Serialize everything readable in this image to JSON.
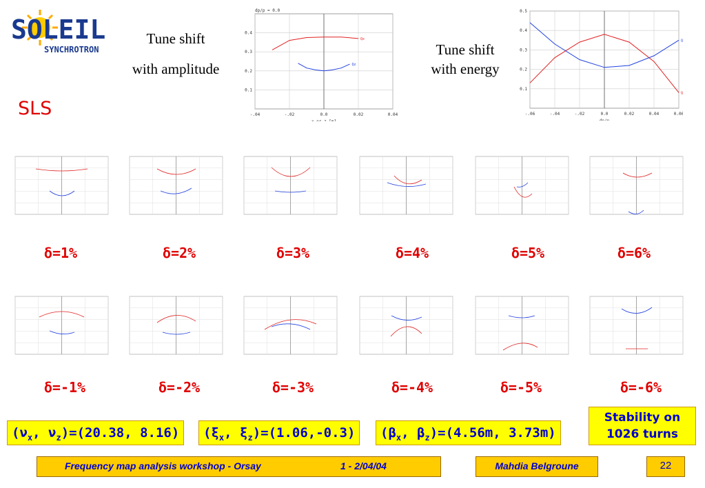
{
  "logo": {
    "word": "SOLEIL",
    "sub": "SYNCHROTRON"
  },
  "left_caption": {
    "line1": "Tune shift",
    "line2": "with amplitude"
  },
  "right_caption": {
    "line1": "Tune shift",
    "line2": "with energy"
  },
  "sls_label": "SLS",
  "delta_pos": [
    "1%",
    "2%",
    "3%",
    "4%",
    "5%",
    "6%"
  ],
  "delta_neg": [
    "-1%",
    "-2%",
    "-3%",
    "-4%",
    "-5%",
    "-6%"
  ],
  "delta_symbol": "δ",
  "params": {
    "tunes": {
      "sym": "ν",
      "x": "x",
      "z": "z",
      "value": ")=(20.38, 8.16)"
    },
    "chroma": {
      "sym": "ξ",
      "x": "x",
      "z": "z",
      "value": ")=(1.06,-0.3)"
    },
    "beta": {
      "sym": "β",
      "x": "x",
      "z": "z",
      "value": ")=(4.56m, 3.73m)"
    }
  },
  "stability": {
    "line1": "Stability on",
    "line2": "1026 turns"
  },
  "footer": {
    "workshop": "Frequency map analysis workshop - Orsay",
    "dates": "1 - 2/04/04",
    "author": "Mahdia Belgroune",
    "page": "22"
  },
  "chart_data": [
    {
      "type": "line",
      "title": "dp/p = 0.0",
      "xlabel": "x or z [m]",
      "xlim": [
        -0.04,
        0.04
      ],
      "ylim": [
        0.0,
        0.5
      ],
      "x_ticks": [
        "-.04",
        "-.02",
        "0.0",
        "0.02",
        "0.04"
      ],
      "y_ticks": [
        "0.1",
        "0.2",
        "0.3",
        "0.4"
      ],
      "series": [
        {
          "name": "Qx",
          "color": "#e02020",
          "x": [
            -0.03,
            -0.02,
            -0.01,
            0.0,
            0.01,
            0.02
          ],
          "y": [
            0.31,
            0.36,
            0.375,
            0.378,
            0.378,
            0.37
          ]
        },
        {
          "name": "Qz",
          "color": "#2040e0",
          "x": [
            -0.015,
            -0.01,
            -0.005,
            0.0,
            0.005,
            0.01,
            0.015
          ],
          "y": [
            0.24,
            0.215,
            0.205,
            0.2,
            0.205,
            0.215,
            0.235
          ]
        }
      ]
    },
    {
      "type": "line",
      "xlabel": "dp/p",
      "xlim": [
        -0.06,
        0.06
      ],
      "ylim": [
        0.0,
        0.5
      ],
      "x_ticks": [
        "-.06",
        "-.04",
        "-.02",
        "0.0",
        "0.02",
        "0.04",
        "0.06"
      ],
      "y_ticks": [
        "0.1",
        "0.2",
        "0.3",
        "0.4",
        "0.5"
      ],
      "series": [
        {
          "name": "Qx",
          "color": "#e02020",
          "x": [
            -0.06,
            -0.04,
            -0.02,
            0.0,
            0.02,
            0.04,
            0.06
          ],
          "y": [
            0.13,
            0.26,
            0.34,
            0.38,
            0.34,
            0.24,
            0.08
          ]
        },
        {
          "name": "Qz",
          "color": "#2040e0",
          "x": [
            -0.06,
            -0.04,
            -0.02,
            0.0,
            0.02,
            0.04,
            0.06
          ],
          "y": [
            0.44,
            0.33,
            0.25,
            0.21,
            0.22,
            0.27,
            0.35
          ]
        }
      ]
    }
  ]
}
